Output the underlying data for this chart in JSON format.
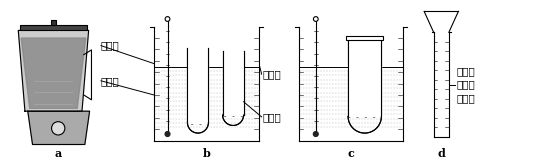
{
  "labels": {
    "a": "a",
    "b": "b",
    "c": "c",
    "d": "d",
    "wendujie": "温度计",
    "pingguoni": "苹果泥",
    "henwenshui": "恒温水",
    "guojiaomei": "果胶酶",
    "guojiaomei_mix": "果胶酶\n和苹果\n泥混合"
  },
  "bg_color": "#ffffff",
  "line_color": "#000000",
  "figsize": [
    5.47,
    1.6
  ],
  "dpi": 100
}
